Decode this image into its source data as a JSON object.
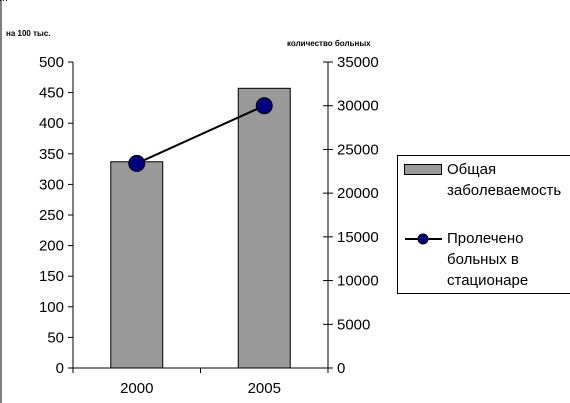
{
  "chart_data": {
    "type": "bar",
    "categories": [
      "2000",
      "2005"
    ],
    "series": [
      {
        "name": "Общая заболеваемость",
        "type": "bar",
        "axis": "left",
        "values": [
          337,
          457
        ],
        "color": "#999999"
      },
      {
        "name": "Пролечено больных в стационаре",
        "type": "line",
        "axis": "right",
        "values": [
          23400,
          30000
        ],
        "color": "#000080"
      }
    ],
    "ylabel_left": "на 100 тыс.",
    "ylabel_right": "количество больных",
    "ylim_left": [
      0,
      500
    ],
    "ylim_right": [
      0,
      35000
    ],
    "yticks_left": [
      "0",
      "50",
      "100",
      "150",
      "200",
      "250",
      "300",
      "350",
      "400",
      "450",
      "500"
    ],
    "yticks_right": [
      "0",
      "5000",
      "10000",
      "15000",
      "20000",
      "25000",
      "30000",
      "35000"
    ],
    "grid": false,
    "legend": {
      "position": "right",
      "items": [
        {
          "lines": [
            "Общая",
            "заболеваемость"
          ]
        },
        {
          "lines": [
            "Пролечено",
            "больных в",
            "стационаре"
          ]
        }
      ]
    }
  }
}
